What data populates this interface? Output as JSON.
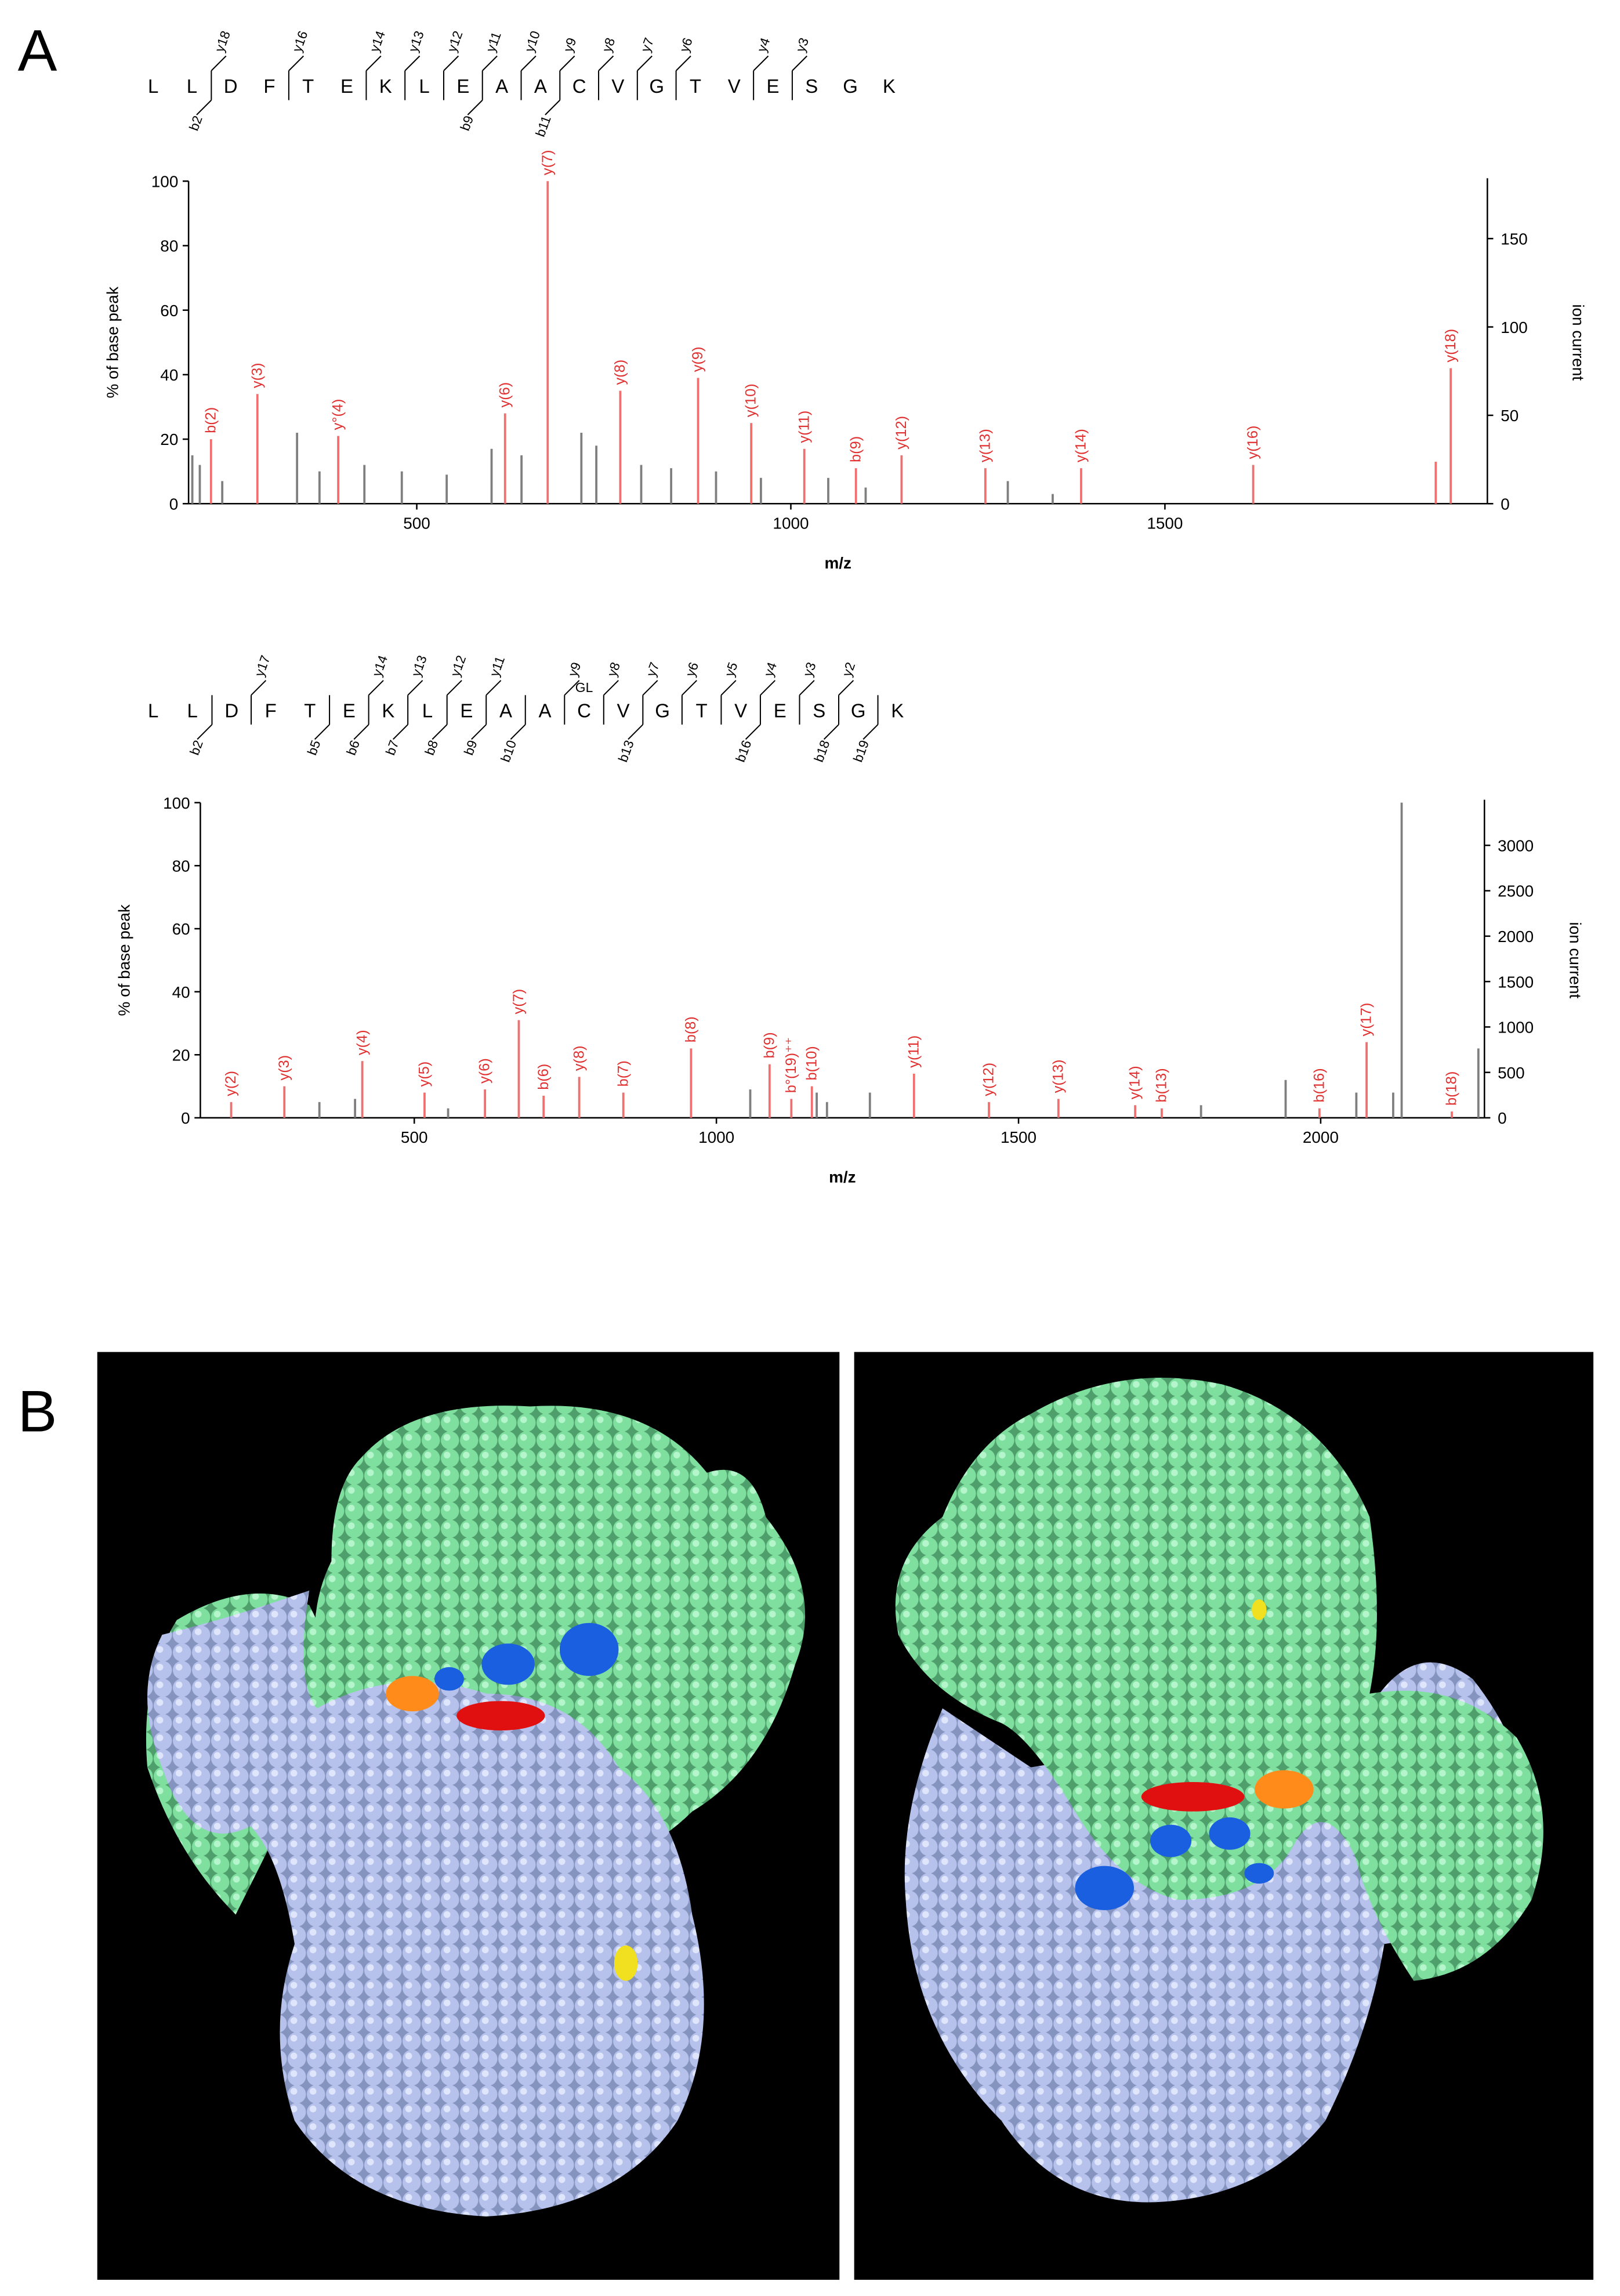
{
  "panel_labels": {
    "a": "A",
    "b": "B"
  },
  "chart_data": [
    {
      "type": "bar",
      "sequence": [
        "L",
        "L",
        "D",
        "F",
        "T",
        "E",
        "K",
        "L",
        "E",
        "A",
        "A",
        "C",
        "V",
        "G",
        "T",
        "V",
        "E",
        "S",
        "G",
        "K"
      ],
      "top_fragments": [
        null,
        "y18",
        null,
        "y16",
        null,
        "y14",
        "y13",
        "y12",
        "y11",
        "y10",
        "y9",
        "y8",
        "y7",
        "y6",
        null,
        "y4",
        "y3",
        null,
        null
      ],
      "bottom_fragments": [
        null,
        "b2",
        null,
        null,
        null,
        null,
        null,
        null,
        "b9",
        null,
        "b11",
        null,
        null,
        null,
        null,
        null,
        null,
        null,
        null
      ],
      "xlabel": "m/z",
      "ylabel": "% of base peak",
      "y2label": "ion current",
      "xlim": [
        195,
        1931
      ],
      "xticks": [
        500,
        1000,
        1500
      ],
      "ylim": [
        0,
        100
      ],
      "yticks": [
        0,
        20,
        40,
        60,
        80,
        100
      ],
      "y2lim": [
        0,
        182.5
      ],
      "y2ticks": [
        0,
        50,
        100,
        150
      ],
      "series": [
        {
          "color": "#f07070",
          "x": [
            225,
            287,
            395,
            618,
            675,
            772,
            876,
            947,
            1018,
            1087,
            1148,
            1260,
            1388,
            1618,
            1862,
            1882
          ],
          "values": [
            20,
            34,
            21,
            28,
            100,
            35,
            39,
            25,
            17,
            11,
            15,
            11,
            11,
            12,
            13,
            42
          ],
          "labels": [
            "b(2)",
            "y(3)",
            "y°(4)",
            "y(6)",
            "y(7)",
            "y(8)",
            "y(9)",
            "y(10)",
            "y(11)",
            "b(9)",
            "y(12)",
            "y(13)",
            "y(14)",
            "y(16)",
            null,
            "y(18)"
          ]
        },
        {
          "color": "#7f7f7f",
          "x": [
            200,
            210,
            240,
            340,
            370,
            430,
            480,
            540,
            600,
            640,
            720,
            740,
            800,
            840,
            900,
            960,
            1050,
            1100,
            1290,
            1350
          ],
          "values": [
            15,
            12,
            7,
            22,
            10,
            12,
            10,
            9,
            17,
            15,
            22,
            18,
            12,
            11,
            10,
            8,
            8,
            5,
            7,
            3
          ]
        }
      ]
    },
    {
      "type": "bar",
      "sequence": [
        "L",
        "L",
        "D",
        "F",
        "T",
        "E",
        "K",
        "L",
        "E",
        "A",
        "A",
        "C",
        "V",
        "G",
        "T",
        "V",
        "E",
        "S",
        "G",
        "K"
      ],
      "modification": "GL",
      "top_fragments": [
        null,
        null,
        "y17",
        null,
        null,
        "y14",
        "y13",
        "y12",
        "y11",
        null,
        "y9",
        "y8",
        "y7",
        "y6",
        "y5",
        "y4",
        "y3",
        "y2",
        null
      ],
      "bottom_fragments": [
        null,
        "b2",
        null,
        null,
        "b5",
        "b6",
        "b7",
        "b8",
        "b9",
        "b10",
        null,
        null,
        "b13",
        null,
        null,
        "b16",
        null,
        "b18",
        "b19"
      ],
      "xlabel": "m/z",
      "ylabel": "% of base peak",
      "y2label": "ion current",
      "xlim": [
        146,
        2271
      ],
      "xticks": [
        500,
        1000,
        1500,
        2000
      ],
      "ylim": [
        0,
        100
      ],
      "yticks": [
        0,
        20,
        40,
        60,
        80,
        100
      ],
      "y2lim": [
        0,
        3470
      ],
      "y2ticks": [
        0,
        500,
        1000,
        1500,
        2000,
        2500,
        3000
      ],
      "series": [
        {
          "color": "#f07070",
          "x": [
            197,
            285,
            414,
            517,
            617,
            673,
            714,
            773,
            846,
            958,
            1088,
            1124,
            1158,
            1327,
            1451,
            1566,
            1693,
            1737,
            1998,
            2076,
            2217
          ],
          "values": [
            5,
            10,
            18,
            8,
            9,
            31,
            7,
            13,
            8,
            22,
            17,
            6,
            10,
            14,
            5,
            6,
            4,
            3,
            3,
            24,
            2
          ],
          "labels": [
            "y(2)",
            "y(3)",
            "y(4)",
            "y(5)",
            "y(6)",
            "y(7)",
            "b(6)",
            "y(8)",
            "b(7)",
            "b(8)",
            "b(9)",
            "b°(19)⁺⁺",
            "b(10)",
            "y(11)",
            "y(12)",
            "y(13)",
            "y(14)",
            "b(13)",
            "b(16)",
            "y(17)",
            "b(18)"
          ]
        },
        {
          "color": "#7f7f7f",
          "x": [
            343,
            402,
            556,
            1056,
            1166,
            1183,
            1254,
            1802,
            1942,
            2059,
            2120,
            2134,
            2261
          ],
          "values": [
            5,
            6,
            3,
            9,
            8,
            5,
            8,
            4,
            12,
            8,
            8,
            100,
            22
          ]
        }
      ]
    }
  ]
}
